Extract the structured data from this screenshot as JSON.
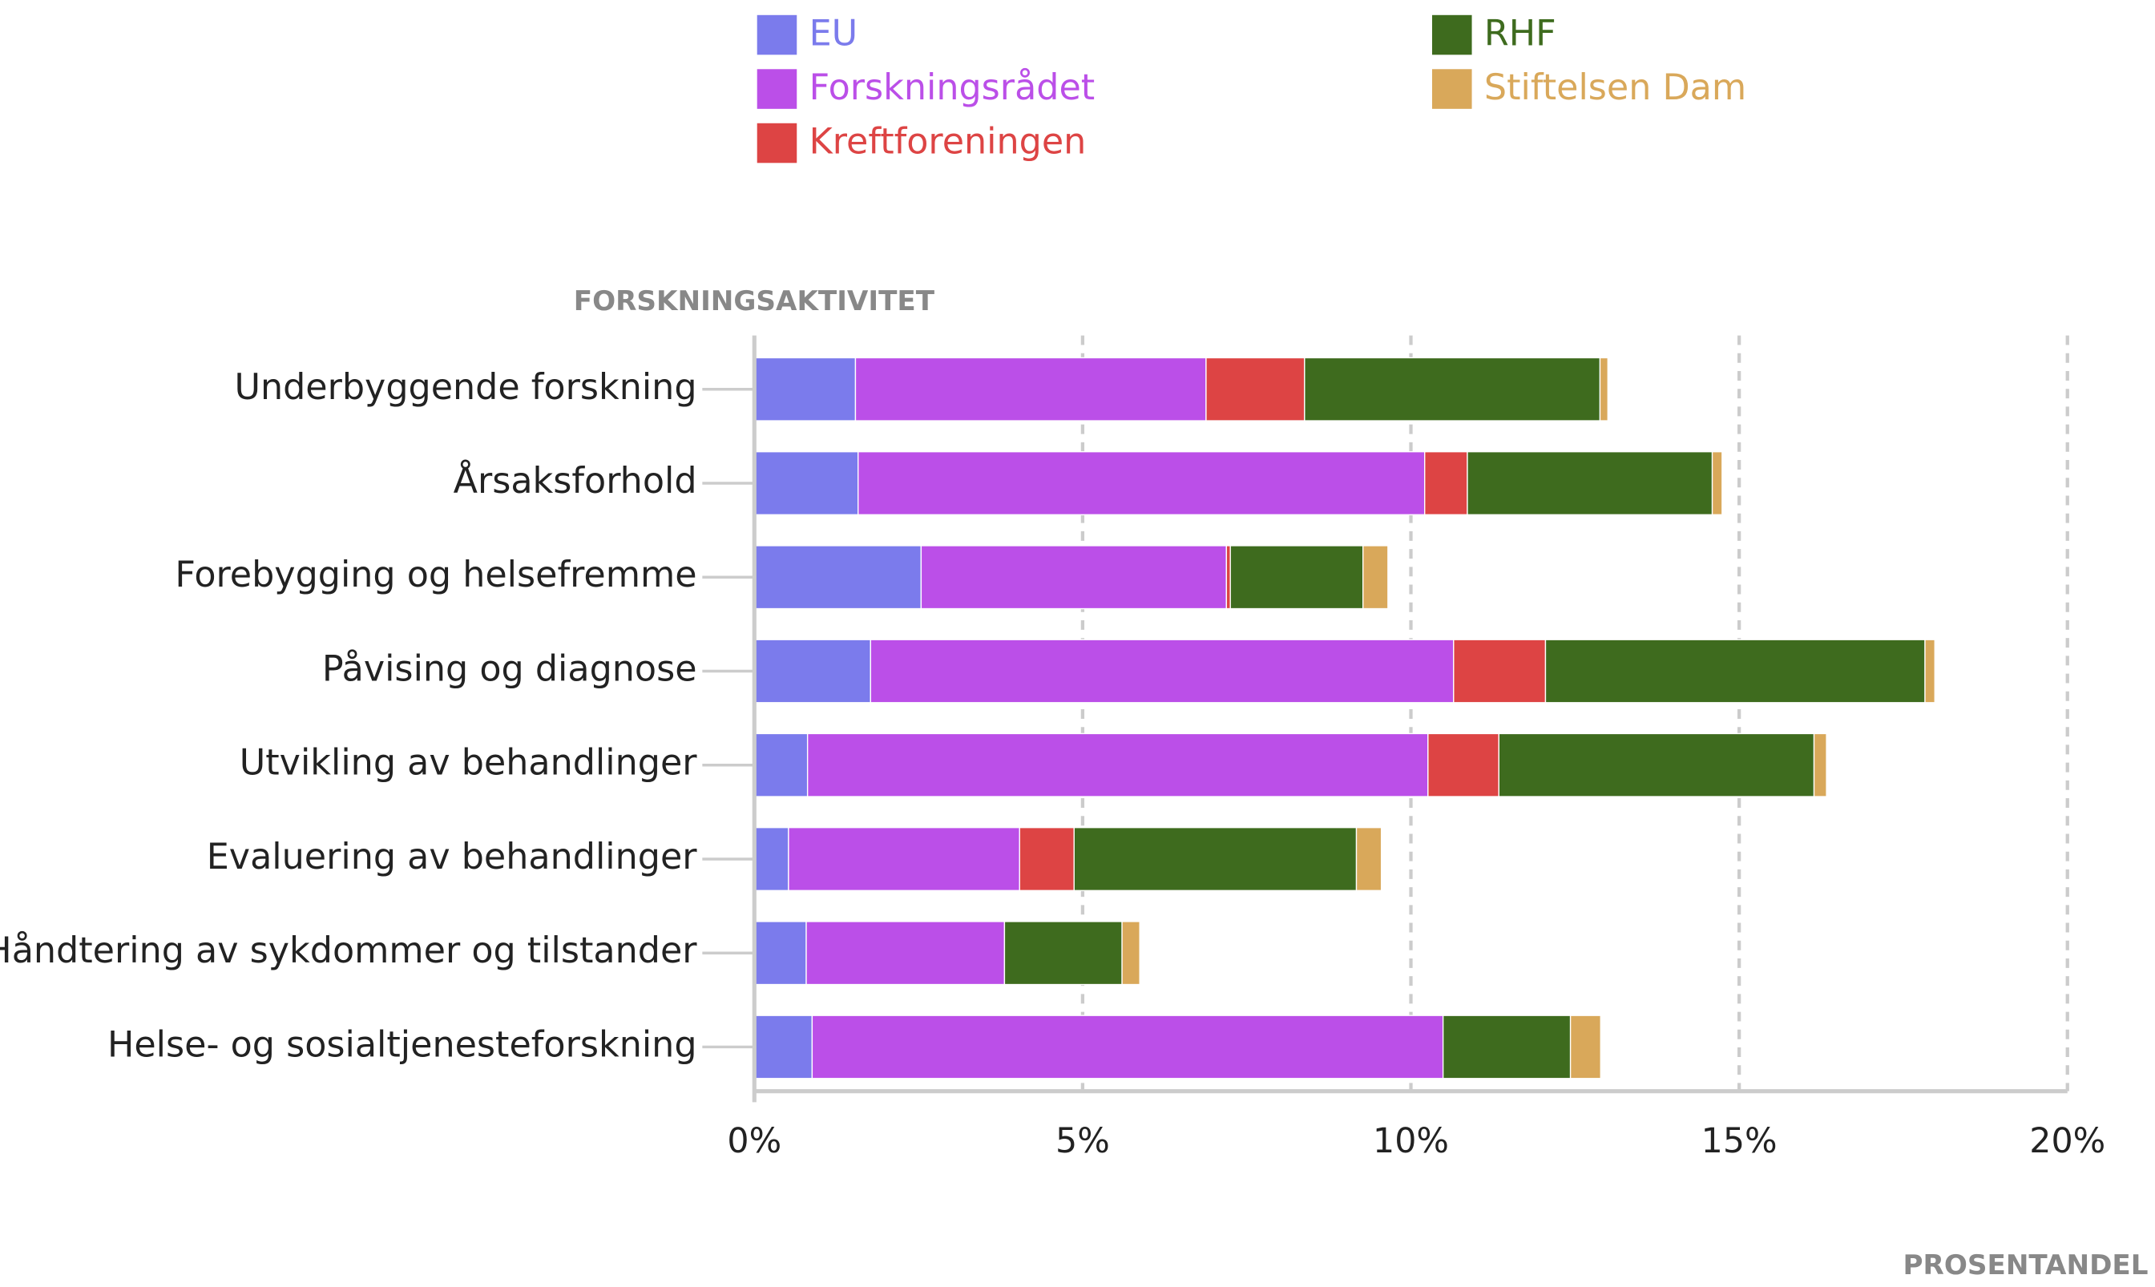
{
  "chart_data": {
    "type": "hbar-stacked",
    "y_axis_label": "FORSKNINGSAKTIVITET",
    "x_axis_label": "PROSENTANDEL",
    "categories": [
      "Underbyggende forskning",
      "Årsaksforhold",
      "Forebygging og helsefremme",
      "Påvising og diagnose",
      "Utvikling av behandlinger",
      "Evaluering av behandlinger",
      "Håndtering av sykdommer og tilstander",
      "Helse- og sosialtjenesteforskning"
    ],
    "series": [
      {
        "name": "EU",
        "color": "#7b7bec",
        "values": [
          1.54,
          1.58,
          2.54,
          1.77,
          0.81,
          0.52,
          0.79,
          0.88
        ]
      },
      {
        "name": "Forskningsrådet",
        "color": "#bb4fe8",
        "values": [
          5.34,
          8.63,
          4.65,
          8.88,
          9.45,
          3.52,
          3.02,
          9.61
        ]
      },
      {
        "name": "Kreftforeningen",
        "color": "#dd4444",
        "values": [
          1.5,
          0.65,
          0.06,
          1.4,
          1.08,
          0.83,
          0,
          0
        ]
      },
      {
        "name": "RHF",
        "color": "#3e6b1e",
        "values": [
          4.5,
          3.73,
          2.02,
          5.78,
          4.8,
          4.3,
          1.79,
          1.94
        ]
      },
      {
        "name": "Stiftelsen Dam",
        "color": "#d9a85a",
        "values": [
          0.12,
          0.15,
          0.38,
          0.15,
          0.19,
          0.38,
          0.27,
          0.46
        ]
      }
    ],
    "xlim": [
      0,
      20
    ],
    "xticks": [
      {
        "value": 0,
        "label": "0%"
      },
      {
        "value": 5,
        "label": "5%"
      },
      {
        "value": 10,
        "label": "10%"
      },
      {
        "value": 15,
        "label": "15%"
      },
      {
        "value": 20,
        "label": "20%"
      }
    ],
    "grid": true
  }
}
